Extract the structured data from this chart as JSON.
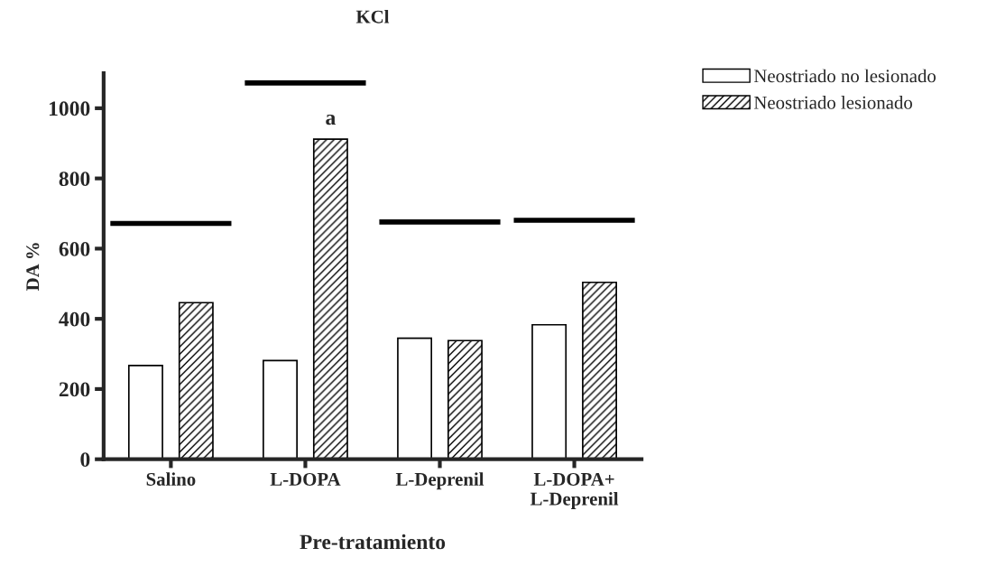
{
  "chart_data": {
    "type": "bar",
    "title": "KCl",
    "xlabel": "Pre-tratamiento",
    "ylabel": "DA %",
    "categories": [
      "Salino",
      "L-DOPA",
      "L-Deprenil",
      "L-DOPA+\nL-Deprenil"
    ],
    "series": [
      {
        "name": "Neostriado no lesionado",
        "color": "#ffffff",
        "values": [
          267,
          281,
          345,
          383
        ]
      },
      {
        "name": "Neostriado lesionado",
        "color": "#000000",
        "values": [
          446,
          912,
          338,
          504
        ]
      }
    ],
    "ref_lines": [
      {
        "axis": "y",
        "value": 672,
        "color": "#000000"
      },
      {
        "axis": "y",
        "value": 1072,
        "color": "#000000"
      },
      {
        "axis": "y",
        "value": 676,
        "color": "#000000"
      },
      {
        "axis": "y",
        "value": 681,
        "color": "#000000"
      }
    ],
    "annotations": [
      "a"
    ],
    "ylim": [
      0,
      1100
    ],
    "yticks": [
      0,
      200,
      400,
      600,
      800,
      1000
    ],
    "grid": false,
    "legend": "top right"
  }
}
